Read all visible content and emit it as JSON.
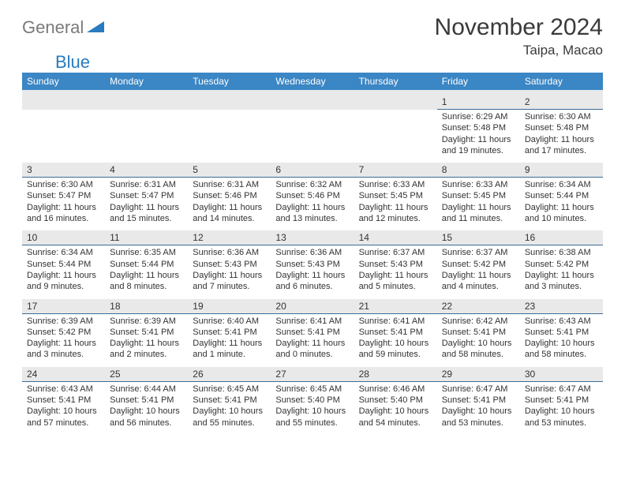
{
  "logo": {
    "general": "General",
    "blue": "Blue"
  },
  "title": "November 2024",
  "location": "Taipa, Macao",
  "colors": {
    "header_bg": "#3b86c4",
    "header_text": "#ffffff",
    "date_bg": "#e9e9e9",
    "date_border": "#3b6d9a",
    "logo_gray": "#7a7a7a",
    "logo_blue": "#2a7bbf"
  },
  "day_headers": [
    "Sunday",
    "Monday",
    "Tuesday",
    "Wednesday",
    "Thursday",
    "Friday",
    "Saturday"
  ],
  "weeks": [
    {
      "dates": [
        "",
        "",
        "",
        "",
        "",
        "1",
        "2"
      ],
      "details": [
        "",
        "",
        "",
        "",
        "",
        "Sunrise: 6:29 AM\nSunset: 5:48 PM\nDaylight: 11 hours and 19 minutes.",
        "Sunrise: 6:30 AM\nSunset: 5:48 PM\nDaylight: 11 hours and 17 minutes."
      ]
    },
    {
      "dates": [
        "3",
        "4",
        "5",
        "6",
        "7",
        "8",
        "9"
      ],
      "details": [
        "Sunrise: 6:30 AM\nSunset: 5:47 PM\nDaylight: 11 hours and 16 minutes.",
        "Sunrise: 6:31 AM\nSunset: 5:47 PM\nDaylight: 11 hours and 15 minutes.",
        "Sunrise: 6:31 AM\nSunset: 5:46 PM\nDaylight: 11 hours and 14 minutes.",
        "Sunrise: 6:32 AM\nSunset: 5:46 PM\nDaylight: 11 hours and 13 minutes.",
        "Sunrise: 6:33 AM\nSunset: 5:45 PM\nDaylight: 11 hours and 12 minutes.",
        "Sunrise: 6:33 AM\nSunset: 5:45 PM\nDaylight: 11 hours and 11 minutes.",
        "Sunrise: 6:34 AM\nSunset: 5:44 PM\nDaylight: 11 hours and 10 minutes."
      ]
    },
    {
      "dates": [
        "10",
        "11",
        "12",
        "13",
        "14",
        "15",
        "16"
      ],
      "details": [
        "Sunrise: 6:34 AM\nSunset: 5:44 PM\nDaylight: 11 hours and 9 minutes.",
        "Sunrise: 6:35 AM\nSunset: 5:44 PM\nDaylight: 11 hours and 8 minutes.",
        "Sunrise: 6:36 AM\nSunset: 5:43 PM\nDaylight: 11 hours and 7 minutes.",
        "Sunrise: 6:36 AM\nSunset: 5:43 PM\nDaylight: 11 hours and 6 minutes.",
        "Sunrise: 6:37 AM\nSunset: 5:43 PM\nDaylight: 11 hours and 5 minutes.",
        "Sunrise: 6:37 AM\nSunset: 5:42 PM\nDaylight: 11 hours and 4 minutes.",
        "Sunrise: 6:38 AM\nSunset: 5:42 PM\nDaylight: 11 hours and 3 minutes."
      ]
    },
    {
      "dates": [
        "17",
        "18",
        "19",
        "20",
        "21",
        "22",
        "23"
      ],
      "details": [
        "Sunrise: 6:39 AM\nSunset: 5:42 PM\nDaylight: 11 hours and 3 minutes.",
        "Sunrise: 6:39 AM\nSunset: 5:41 PM\nDaylight: 11 hours and 2 minutes.",
        "Sunrise: 6:40 AM\nSunset: 5:41 PM\nDaylight: 11 hours and 1 minute.",
        "Sunrise: 6:41 AM\nSunset: 5:41 PM\nDaylight: 11 hours and 0 minutes.",
        "Sunrise: 6:41 AM\nSunset: 5:41 PM\nDaylight: 10 hours and 59 minutes.",
        "Sunrise: 6:42 AM\nSunset: 5:41 PM\nDaylight: 10 hours and 58 minutes.",
        "Sunrise: 6:43 AM\nSunset: 5:41 PM\nDaylight: 10 hours and 58 minutes."
      ]
    },
    {
      "dates": [
        "24",
        "25",
        "26",
        "27",
        "28",
        "29",
        "30"
      ],
      "details": [
        "Sunrise: 6:43 AM\nSunset: 5:41 PM\nDaylight: 10 hours and 57 minutes.",
        "Sunrise: 6:44 AM\nSunset: 5:41 PM\nDaylight: 10 hours and 56 minutes.",
        "Sunrise: 6:45 AM\nSunset: 5:41 PM\nDaylight: 10 hours and 55 minutes.",
        "Sunrise: 6:45 AM\nSunset: 5:40 PM\nDaylight: 10 hours and 55 minutes.",
        "Sunrise: 6:46 AM\nSunset: 5:40 PM\nDaylight: 10 hours and 54 minutes.",
        "Sunrise: 6:47 AM\nSunset: 5:41 PM\nDaylight: 10 hours and 53 minutes.",
        "Sunrise: 6:47 AM\nSunset: 5:41 PM\nDaylight: 10 hours and 53 minutes."
      ]
    }
  ]
}
